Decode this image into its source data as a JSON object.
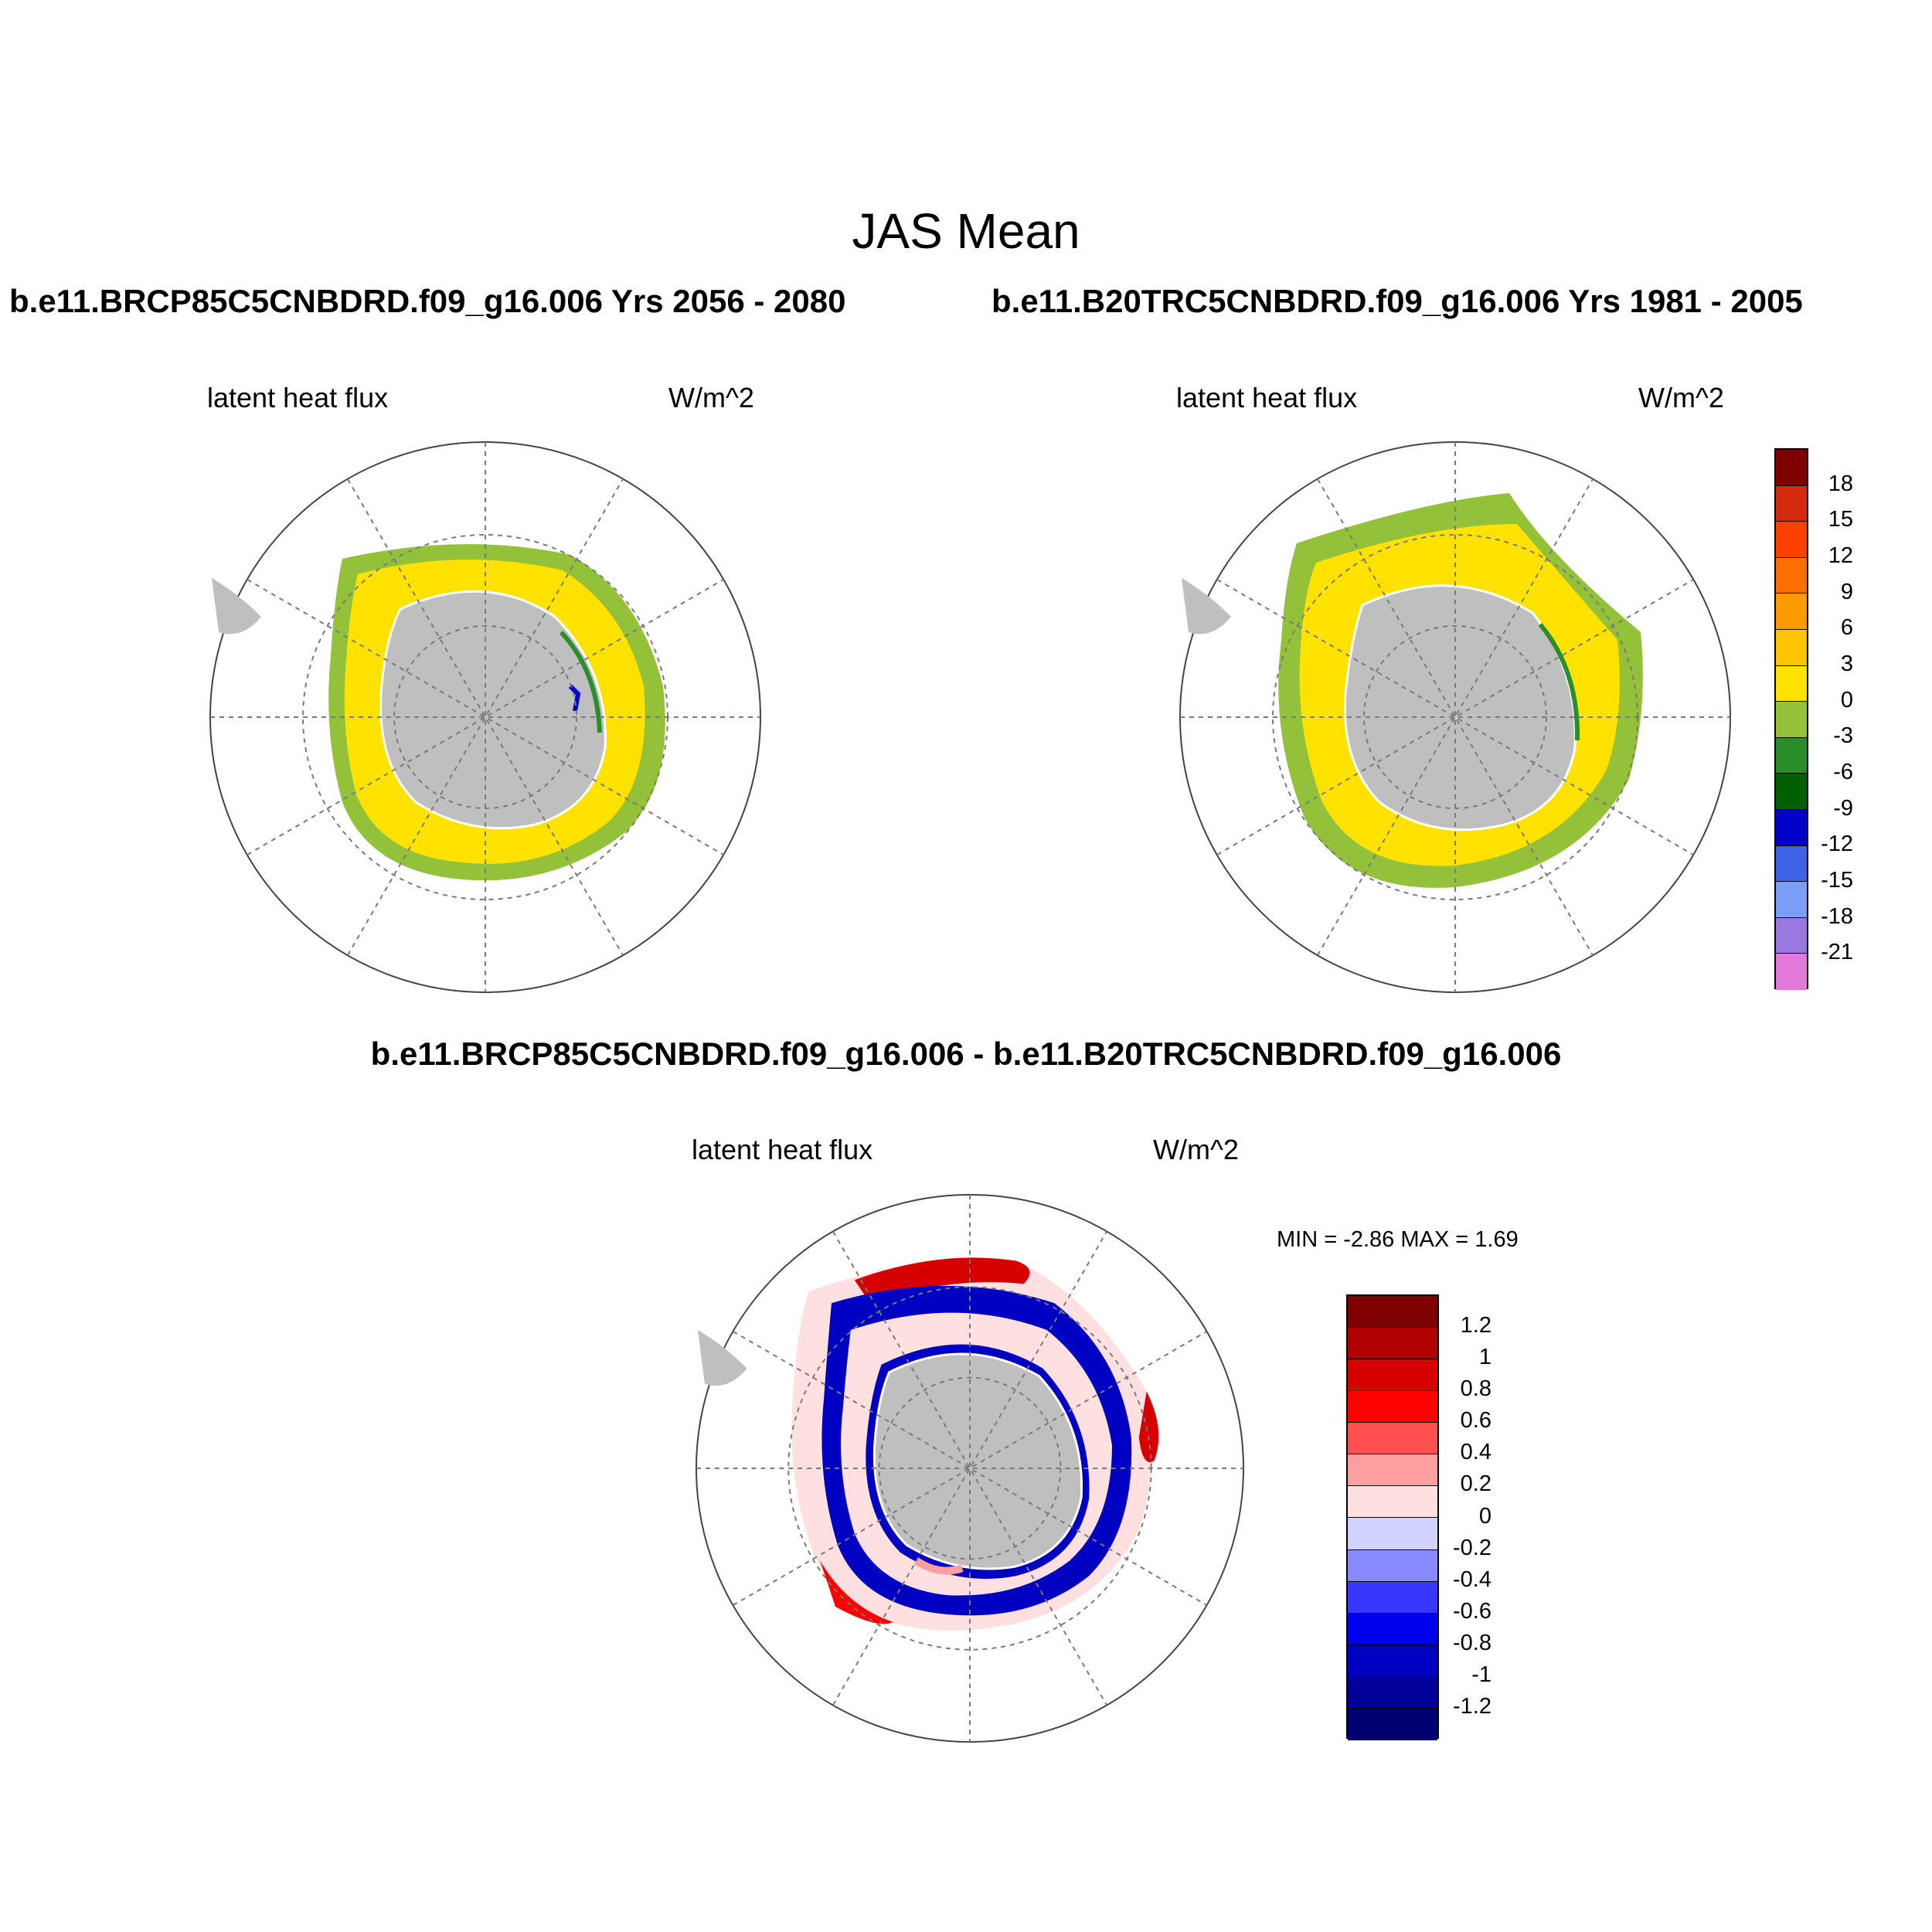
{
  "main_title": "JAS Mean",
  "panels": {
    "left_title": "b.e11.BRCP85C5CNBDRD.f09_g16.006  Yrs 2056 - 2080",
    "right_title": "b.e11.B20TRC5CNBDRD.f09_g16.006  Yrs 1981 - 2005",
    "diff_title": "b.e11.BRCP85C5CNBDRD.f09_g16.006 - b.e11.B20TRC5CNBDRD.f09_g16.006",
    "variable": "latent heat flux",
    "units": "W/m^2",
    "minmax": "MIN =  -2.86 MAX =   1.69"
  },
  "colorbar_top": {
    "colors": [
      "#800000",
      "#d62a0f",
      "#ff4000",
      "#ff6e00",
      "#ff9b00",
      "#ffc300",
      "#ffe200",
      "#94c13a",
      "#2a8f2a",
      "#005f00",
      "#0000c8",
      "#3d62e6",
      "#7a9ef6",
      "#9b78e0",
      "#e37ad9"
    ],
    "labels": [
      "18",
      "15",
      "12",
      "9",
      "6",
      "3",
      "0",
      "-3",
      "-6",
      "-9",
      "-12",
      "-15",
      "-18",
      "-21"
    ]
  },
  "colorbar_bottom": {
    "colors": [
      "#7f0000",
      "#b00000",
      "#d60000",
      "#ff0000",
      "#ff5050",
      "#ff9f9f",
      "#ffe0e0",
      "#d2d2ff",
      "#8a8aff",
      "#3737ff",
      "#0000f0",
      "#0000c3",
      "#000099",
      "#000070"
    ],
    "labels": [
      "1.2",
      "1",
      "0.8",
      "0.6",
      "0.4",
      "0.2",
      "0",
      "-0.2",
      "-0.4",
      "-0.6",
      "-0.8",
      "-1",
      "-1.2"
    ]
  },
  "map_colors": {
    "land": "#bfbfbf",
    "grid": "#7a7a7a"
  }
}
